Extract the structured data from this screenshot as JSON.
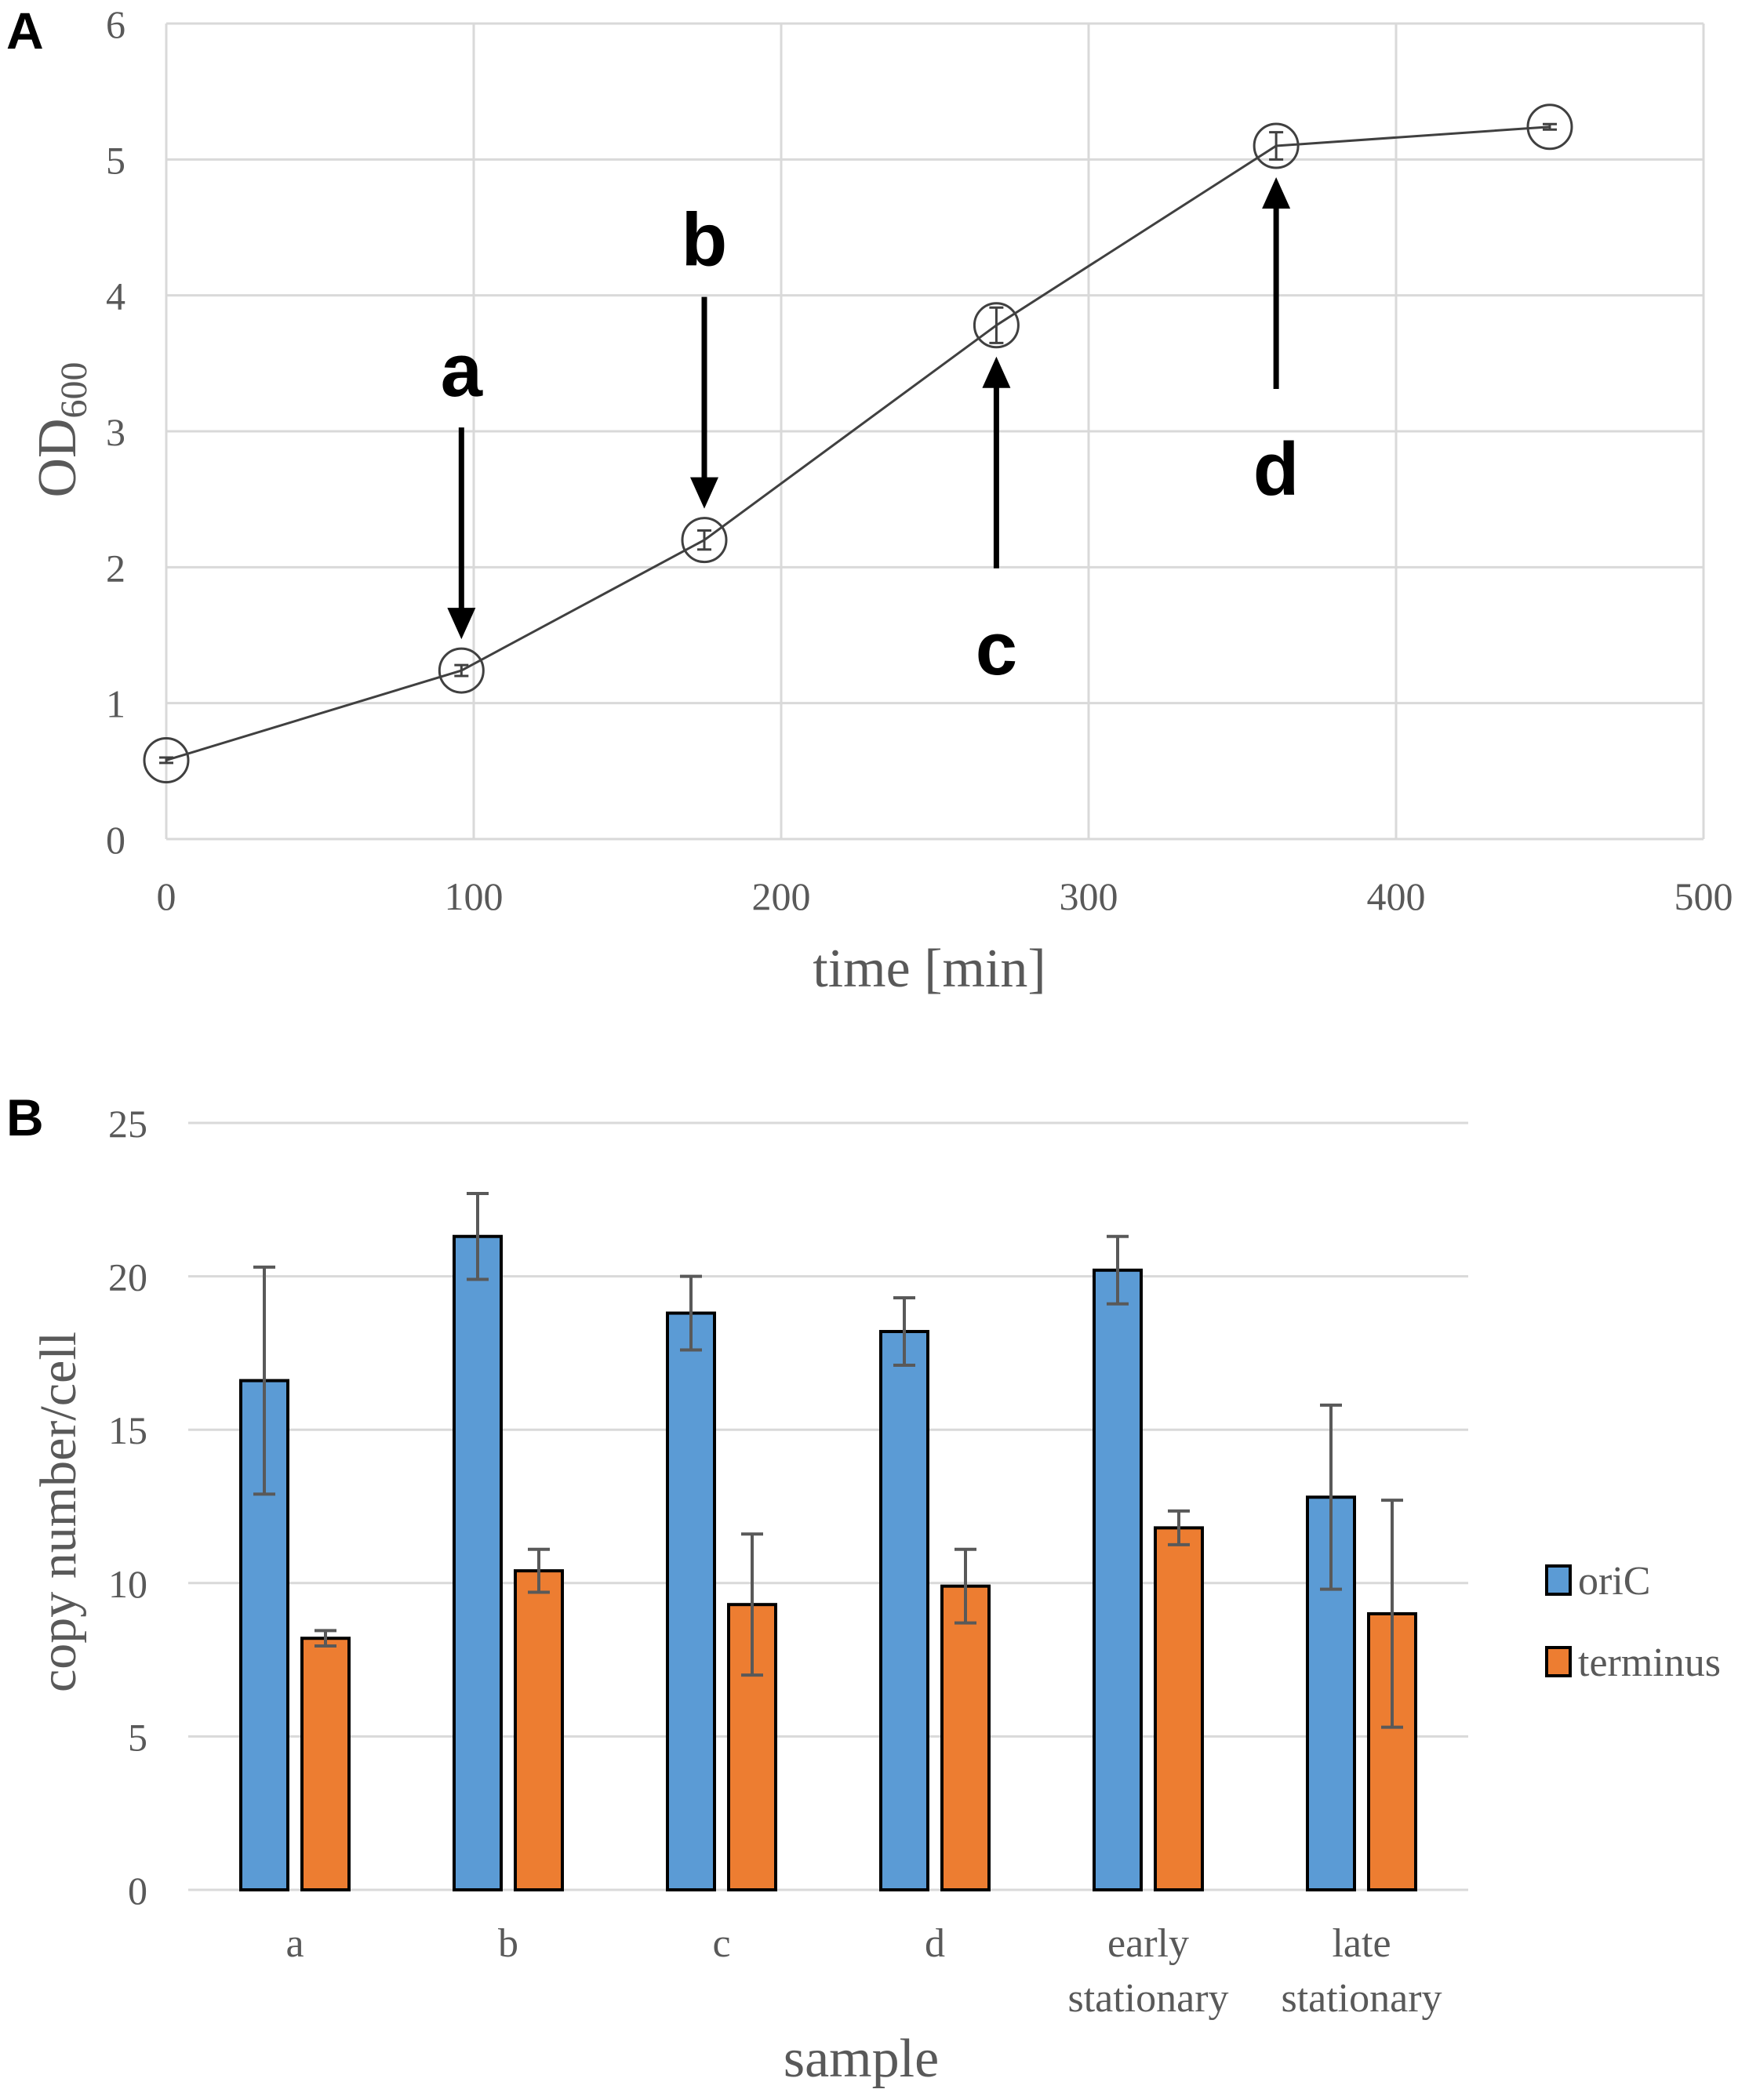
{
  "chart_data": [
    {
      "panel": "A",
      "type": "line",
      "xlabel": "time [min]",
      "ylabel_main": "OD",
      "ylabel_sub": "600",
      "xlim": [
        0,
        500
      ],
      "ylim": [
        0,
        6
      ],
      "xticks": [
        0,
        100,
        200,
        300,
        400,
        500
      ],
      "yticks": [
        0,
        1,
        2,
        3,
        4,
        5,
        6
      ],
      "grid": true,
      "series": [
        {
          "name": "OD600",
          "x": [
            0,
            96,
            175,
            270,
            361,
            450
          ],
          "y": [
            0.58,
            1.24,
            2.2,
            3.78,
            5.1,
            5.24
          ],
          "err": [
            0.02,
            0.04,
            0.07,
            0.13,
            0.1,
            0.02
          ]
        }
      ],
      "annotations": [
        {
          "label": "a",
          "x": 96,
          "y": 1.24,
          "direction": "down"
        },
        {
          "label": "b",
          "x": 175,
          "y": 2.2,
          "direction": "down"
        },
        {
          "label": "c",
          "x": 270,
          "y": 3.78,
          "direction": "up"
        },
        {
          "label": "d",
          "x": 361,
          "y": 5.1,
          "direction": "up"
        }
      ]
    },
    {
      "panel": "B",
      "type": "bar",
      "xlabel": "sample",
      "ylabel": "copy number/cell",
      "ylim": [
        0,
        25
      ],
      "yticks": [
        0,
        5,
        10,
        15,
        20,
        25
      ],
      "grid": true,
      "legend_position": "right",
      "categories": [
        [
          "a"
        ],
        [
          "b"
        ],
        [
          "c"
        ],
        [
          "d"
        ],
        [
          "early",
          "stationary"
        ],
        [
          "late",
          "stationary"
        ]
      ],
      "series": [
        {
          "name": "oriC",
          "color": "#5b9bd5",
          "values": [
            16.6,
            21.3,
            18.8,
            18.2,
            20.2,
            12.8
          ],
          "err": [
            3.7,
            1.4,
            1.2,
            1.1,
            1.1,
            3.0
          ]
        },
        {
          "name": "terminus",
          "color": "#ed7d31",
          "values": [
            8.2,
            10.4,
            9.3,
            9.9,
            11.8,
            9.0
          ],
          "err": [
            0.25,
            0.7,
            2.3,
            1.2,
            0.55,
            3.7
          ]
        }
      ]
    }
  ],
  "labels": {
    "panel_a": "A",
    "panel_b": "B"
  }
}
